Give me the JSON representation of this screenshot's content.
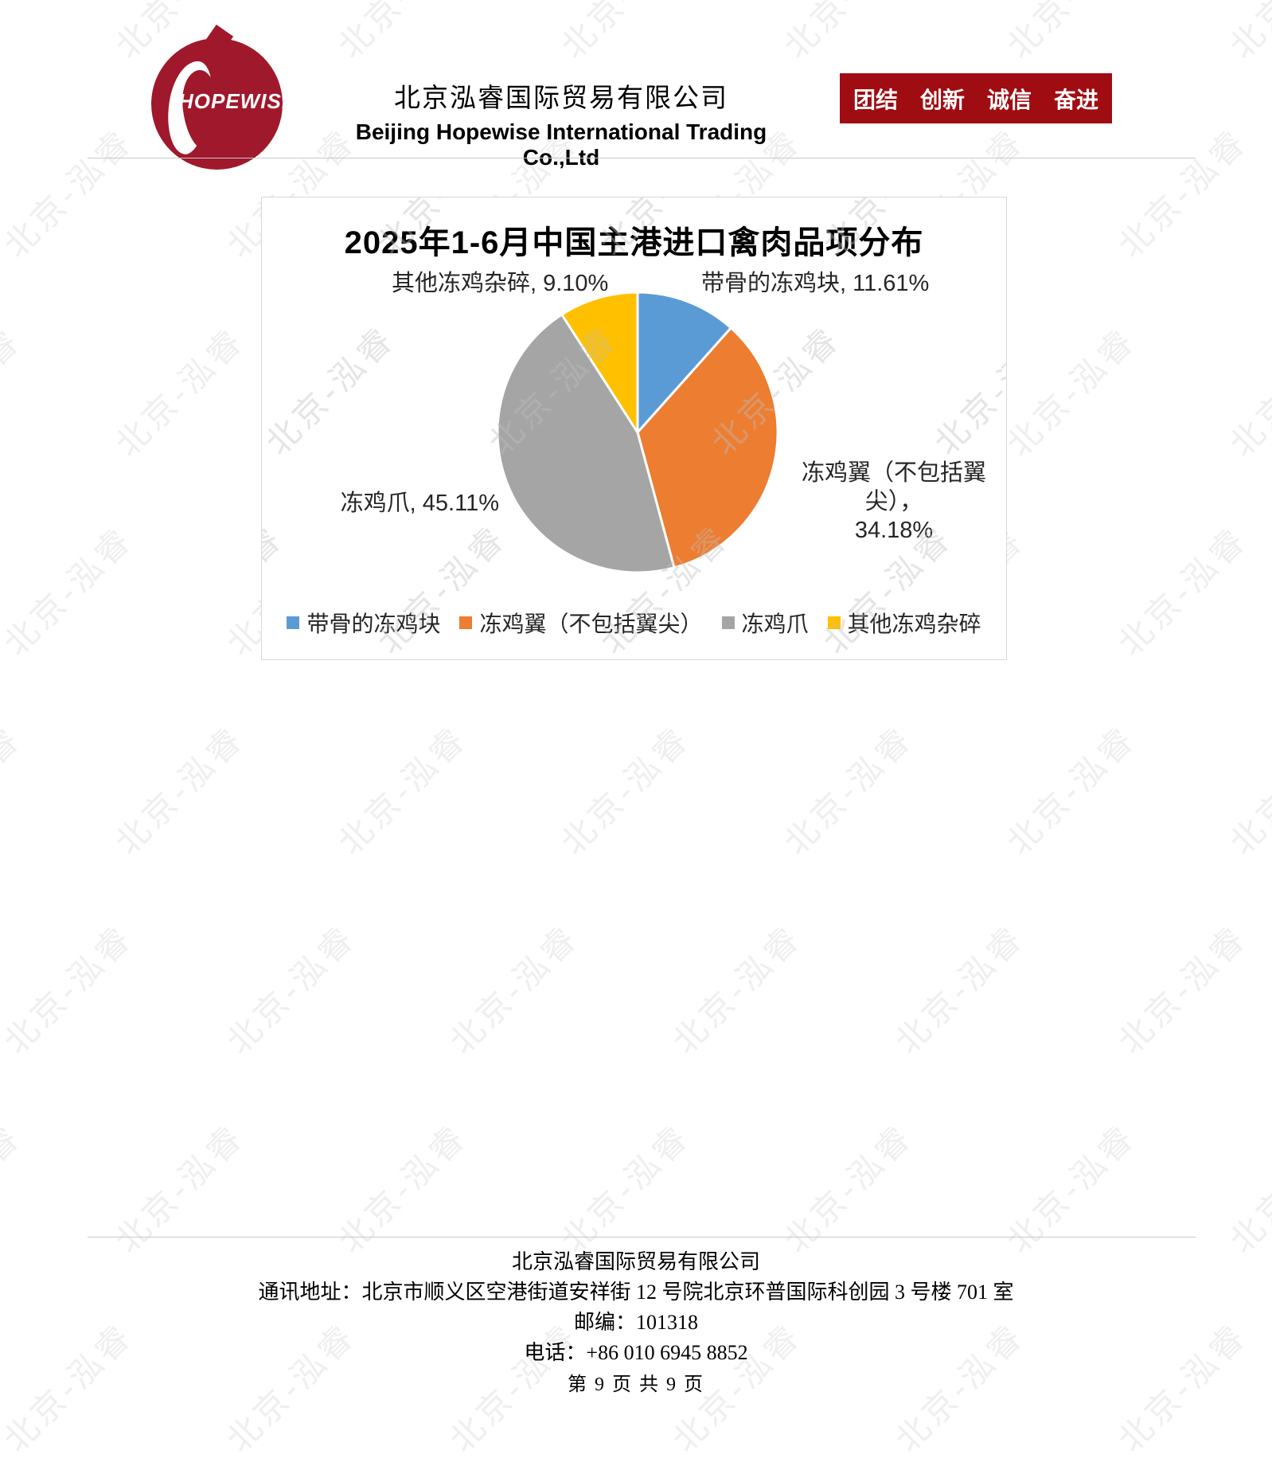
{
  "header": {
    "logo_text": "HOPEWISE",
    "logo_color": "#A0182B",
    "company_cn": "北京泓睿国际贸易有限公司",
    "company_en": "Beijing Hopewise International Trading Co.,Ltd",
    "banner_text": "团结　创新　诚信　奋进",
    "banner_color": "#9F0C12"
  },
  "chart_data": {
    "type": "pie",
    "title": "2025年1-6月中国主港进口禽肉品项分布",
    "labels": [
      "带骨的冻鸡块",
      "冻鸡翼（不包括翼尖）",
      "冻鸡爪",
      "其他冻鸡杂碎"
    ],
    "values": [
      11.61,
      34.18,
      45.11,
      9.1
    ],
    "unit": "%",
    "colors": [
      "#5B9BD5",
      "#ED7D31",
      "#A5A5A5",
      "#FFC000"
    ],
    "start_angle": 0,
    "direction": "clockwise",
    "legend_position": "bottom",
    "callouts": {
      "bone": "带骨的冻鸡块, 11.61%",
      "wing_line1": "冻鸡翼（不包括翼尖），",
      "wing_line2": "34.18%",
      "claw": "冻鸡爪, 45.11%",
      "other": "其他冻鸡杂碎, 9.10%"
    }
  },
  "watermark": {
    "text": "北京-泓睿",
    "page_color": "#efefef",
    "chart_color": "rgba(190,190,190,0.40)"
  },
  "footer": {
    "company": "北京泓睿国际贸易有限公司",
    "address": "通讯地址：北京市顺义区空港街道安祥街 12 号院北京环普国际科创园 3 号楼 701 室",
    "postcode": "邮编：101318",
    "phone": "电话：+86 010 6945 8852",
    "page": "第 9 页 共 9 页"
  }
}
